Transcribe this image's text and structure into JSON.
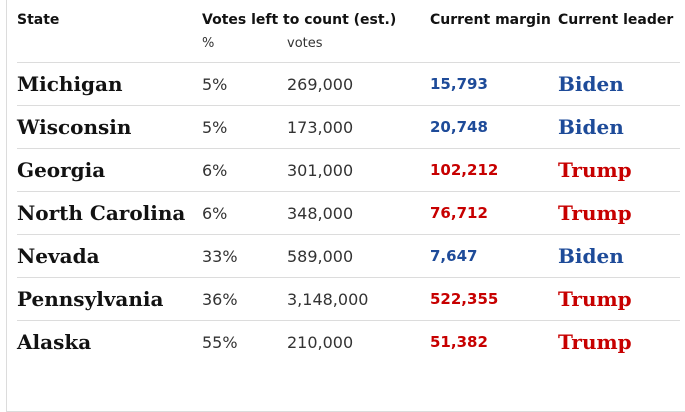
{
  "header": {
    "state": "State",
    "votes_left": "Votes left to count (est.)",
    "current_margin": "Current margin",
    "current_leader": "Current leader",
    "sub_pct": "%",
    "sub_votes": "votes"
  },
  "rows": [
    {
      "state": "Michigan",
      "pct": "5%",
      "votes": "269,000",
      "margin": "15,793",
      "leader": "Biden"
    },
    {
      "state": "Wisconsin",
      "pct": "5%",
      "votes": "173,000",
      "margin": "20,748",
      "leader": "Biden"
    },
    {
      "state": "Georgia",
      "pct": "6%",
      "votes": "301,000",
      "margin": "102,212",
      "leader": "Trump"
    },
    {
      "state": "North Carolina",
      "pct": "6%",
      "votes": "348,000",
      "margin": "76,712",
      "leader": "Trump"
    },
    {
      "state": "Nevada",
      "pct": "33%",
      "votes": "589,000",
      "margin": "7,647",
      "leader": "Biden"
    },
    {
      "state": "Pennsylvania",
      "pct": "36%",
      "votes": "3,148,000",
      "margin": "522,355",
      "leader": "Trump"
    },
    {
      "state": "Alaska",
      "pct": "55%",
      "votes": "210,000",
      "margin": "51,382",
      "leader": "Trump"
    }
  ],
  "colors": {
    "biden": "#1e4b99",
    "trump": "#c70000"
  }
}
